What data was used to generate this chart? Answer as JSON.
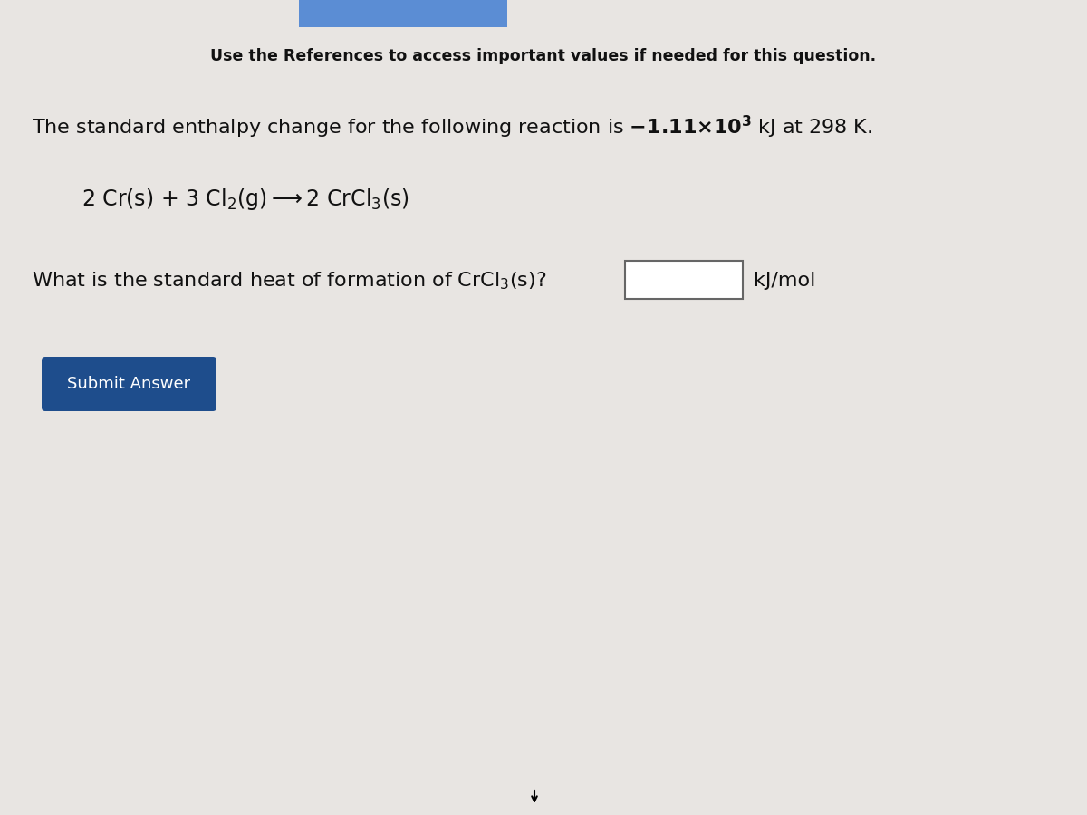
{
  "background_color": "#d0cfcf",
  "content_bg_color": "#e8e5e2",
  "title_text": "Use the References to access important values if needed for this question.",
  "title_fontsize": 12.5,
  "line1_pre": "The standard enthalpy change for the following reaction is ",
  "line1_bold": "-1.11×10",
  "line1_super": "3",
  "line1_post": " kJ at 298 K.",
  "line1_fontsize": 16,
  "reaction": "2 Cr(s) + 3 Cl$_2$(g)⟶2 CrCl$_3$(s)",
  "reaction_fontsize": 16,
  "question_pre": "What is the standard heat of formation of CrCl$_3$(s)?",
  "question_unit": "kJ/mol",
  "question_fontsize": 16,
  "button_text": "Submit Answer",
  "button_color": "#1e4d8c",
  "button_text_color": "#ffffff",
  "button_fontsize": 13,
  "input_box_color": "#ffffff",
  "text_color": "#111111",
  "top_bar_color": "#5b8dd4"
}
